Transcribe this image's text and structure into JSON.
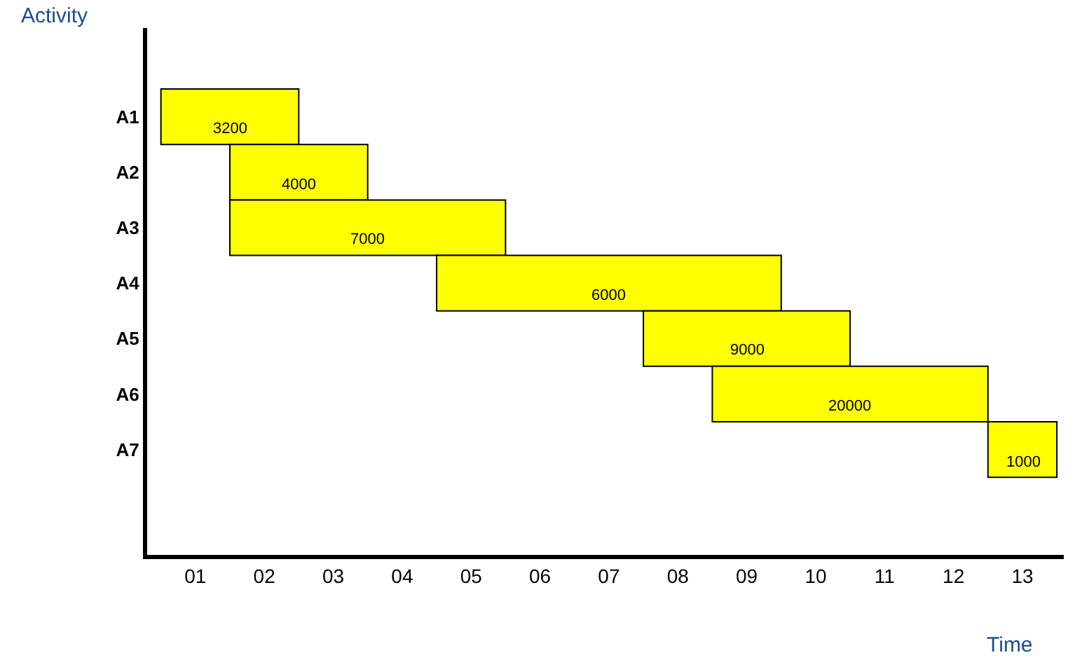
{
  "chart_data": {
    "type": "bar",
    "orientation": "horizontal",
    "xlabel": "Time",
    "ylabel": "Activity",
    "categories": [
      "A1",
      "A2",
      "A3",
      "A4",
      "A5",
      "A6",
      "A7"
    ],
    "base": [
      0.5,
      1.5,
      1.5,
      4.5,
      7.5,
      8.5,
      12.5
    ],
    "values": [
      2,
      2,
      4,
      5,
      3,
      4,
      1
    ],
    "annotations": [
      {
        "text": "3200",
        "x": 1.5,
        "y": "A1"
      },
      {
        "text": "4000",
        "x": 2.5,
        "y": "A2"
      },
      {
        "text": "7000",
        "x": 3.5,
        "y": "A3"
      },
      {
        "text": "6000",
        "x": 7,
        "y": "A4"
      },
      {
        "text": "9000",
        "x": 9,
        "y": "A5"
      },
      {
        "text": "20000",
        "x": 10.5,
        "y": "A6"
      },
      {
        "text": "1000",
        "x": 13,
        "y": "A7"
      }
    ],
    "color": "#ffff00",
    "xlim": [
      0.3,
      13.6
    ],
    "xticks": [
      {
        "value": 1,
        "label": "01"
      },
      {
        "value": 2,
        "label": "02"
      },
      {
        "value": 3,
        "label": "03"
      },
      {
        "value": 4,
        "label": "04"
      },
      {
        "value": 5,
        "label": "05"
      },
      {
        "value": 6,
        "label": "06"
      },
      {
        "value": 7,
        "label": "07"
      },
      {
        "value": 8,
        "label": "08"
      },
      {
        "value": 9,
        "label": "09"
      },
      {
        "value": 10,
        "label": "10"
      },
      {
        "value": 11,
        "label": "11"
      },
      {
        "value": 12,
        "label": "12"
      },
      {
        "value": 13,
        "label": "13"
      }
    ],
    "legend": false
  }
}
